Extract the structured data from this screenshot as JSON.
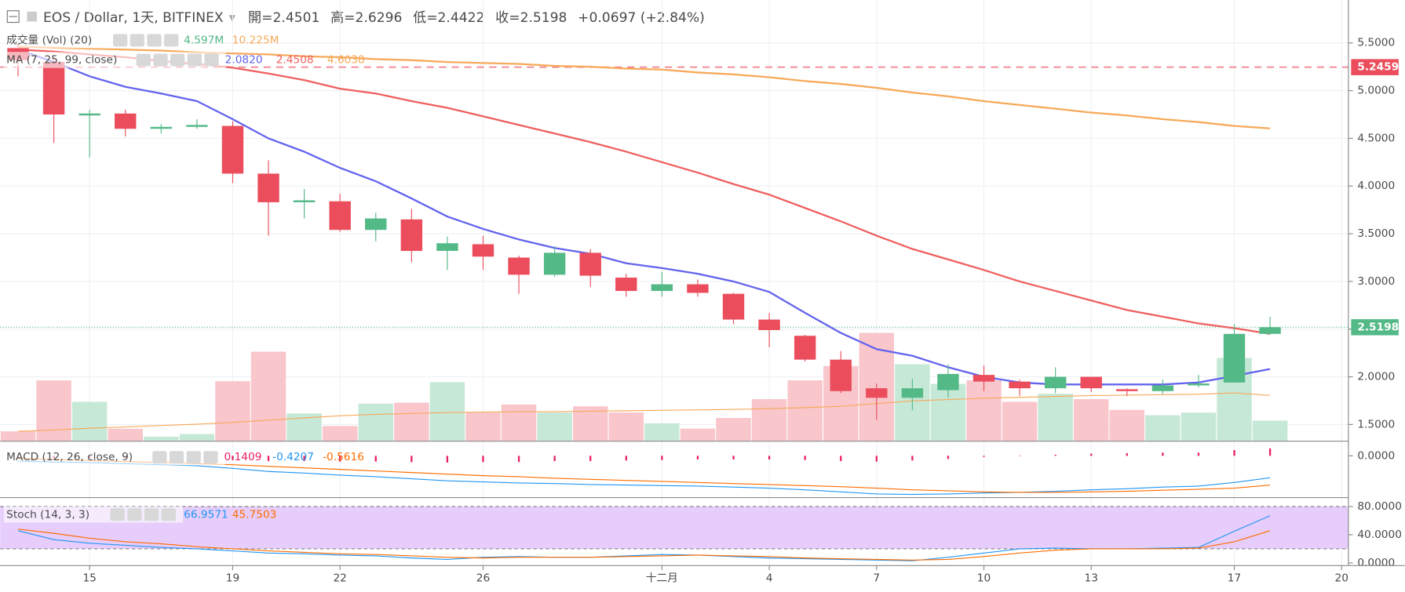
{
  "chart_data": {
    "type": "candlestick",
    "title": "EOS / Dollar, 1天, BITFINEX",
    "ohlc_labels": [
      "開=",
      "高=",
      "低=",
      "收="
    ],
    "change": "+0.0697 (+2.84%)",
    "categories": [
      null,
      null,
      "15",
      null,
      null,
      null,
      "19",
      null,
      null,
      "22",
      null,
      null,
      null,
      "26",
      null,
      null,
      null,
      null,
      "十二月",
      null,
      null,
      "4",
      null,
      null,
      "7",
      null,
      null,
      "10",
      null,
      null,
      "13",
      null,
      null,
      null,
      "17",
      null,
      null,
      "20"
    ],
    "open": [
      5.45,
      5.3,
      4.74,
      4.76,
      4.6,
      4.62,
      4.63,
      4.13,
      3.83,
      3.84,
      3.54,
      3.65,
      3.32,
      3.39,
      3.25,
      3.07,
      3.3,
      3.04,
      2.9,
      2.97,
      2.87,
      2.6,
      2.43,
      2.18,
      1.88,
      1.78,
      1.86,
      2.02,
      1.95,
      1.88,
      2.0,
      1.87,
      1.85,
      1.91,
      1.94,
      2.4501,
      null,
      null
    ],
    "high": [
      5.5,
      5.35,
      4.8,
      4.8,
      4.65,
      4.7,
      4.68,
      4.27,
      3.97,
      3.92,
      3.72,
      3.76,
      3.47,
      3.48,
      3.27,
      3.37,
      3.34,
      3.08,
      3.1,
      3.02,
      2.88,
      2.67,
      2.44,
      2.27,
      1.93,
      1.98,
      2.13,
      2.12,
      1.97,
      2.1,
      2.0,
      1.88,
      1.97,
      2.02,
      2.55,
      2.6296,
      null,
      null
    ],
    "low": [
      5.15,
      4.45,
      4.3,
      4.52,
      4.55,
      4.6,
      4.03,
      3.48,
      3.66,
      3.52,
      3.42,
      3.2,
      3.12,
      3.12,
      2.87,
      3.05,
      2.94,
      2.84,
      2.84,
      2.84,
      2.55,
      2.31,
      2.16,
      1.83,
      1.55,
      1.65,
      1.78,
      1.85,
      1.8,
      1.83,
      1.84,
      1.8,
      1.82,
      1.89,
      1.94,
      2.4422,
      null,
      null
    ],
    "close": [
      5.32,
      4.75,
      4.76,
      4.6,
      4.62,
      4.64,
      4.13,
      3.83,
      3.85,
      3.54,
      3.66,
      3.32,
      3.4,
      3.26,
      3.07,
      3.3,
      3.06,
      2.9,
      2.97,
      2.88,
      2.6,
      2.49,
      2.18,
      1.85,
      1.78,
      1.88,
      2.03,
      1.95,
      1.88,
      2.0,
      1.88,
      1.85,
      1.91,
      1.93,
      2.45,
      2.5198,
      null,
      null
    ],
    "up_color": "#53b987",
    "down_color": "#eb4d5c",
    "ylim": [
      1.325,
      5.95
    ],
    "yticks": [
      {
        "value": 1.5,
        "label": "1.5000"
      },
      {
        "value": 2,
        "label": "2.0000"
      },
      {
        "value": 2.5,
        "label": "2.5000"
      },
      {
        "value": 3,
        "label": "3.0000"
      },
      {
        "value": 3.5,
        "label": "3.5000"
      },
      {
        "value": 4,
        "label": "4.0000"
      },
      {
        "value": 4.5,
        "label": "4.5000"
      },
      {
        "value": 5,
        "label": "5.0000"
      },
      {
        "value": 5.5,
        "label": "5.5000"
      }
    ],
    "grid": true,
    "alert_line": {
      "value": 5.2459,
      "color": "#eb4d5c"
    },
    "volume": {
      "name": "成交量 (Vol) (20)",
      "ylim": [
        0,
        98.6
      ],
      "up_color": "#c6e8d7",
      "down_color": "#f8c6cb",
      "label_color": "#53b987",
      "values": [
        2.2,
        13.6,
        8.8,
        2.8,
        1.0,
        1.6,
        13.4,
        20,
        6.2,
        3.4,
        8.4,
        8.6,
        13.2,
        6.4,
        8.2,
        6.4,
        7.8,
        6.4,
        4.0,
        2.8,
        5.2,
        9.4,
        13.6,
        16.8,
        24.2,
        17.2,
        12.8,
        13.6,
        8.8,
        10.6,
        9.4,
        7,
        5.8,
        6.4,
        18.6,
        4.597,
        null,
        null
      ],
      "value_label": "4.597M",
      "ma": {
        "color": "#f7a95a",
        "value_label": "10.225M",
        "values": [
          2.2,
          2.5,
          2.9,
          3.2,
          3.5,
          3.8,
          4.2,
          4.7,
          5.2,
          5.7,
          6.0,
          6.2,
          6.4,
          6.5,
          6.6,
          6.6,
          6.7,
          6.8,
          6.9,
          7.0,
          7.1,
          7.3,
          7.5,
          7.8,
          8.4,
          9.0,
          9.3,
          9.6,
          9.8,
          10.0,
          10.2,
          10.3,
          10.4,
          10.5,
          10.8,
          10.225,
          null,
          null
        ]
      }
    },
    "ma": {
      "name": "MA (7, 25, 99, close)",
      "series": [
        {
          "color": "#6363ee",
          "legend_value": "2.0820",
          "values": [
            5.43,
            5.3,
            5.15,
            5.04,
            4.97,
            4.89,
            4.7,
            4.5,
            4.36,
            4.19,
            4.05,
            3.87,
            3.68,
            3.55,
            3.44,
            3.35,
            3.29,
            3.19,
            3.14,
            3.08,
            3.0,
            2.89,
            2.67,
            2.46,
            2.29,
            2.22,
            2.1,
            2.0,
            1.94,
            1.92,
            1.92,
            1.92,
            1.92,
            1.94,
            2.01,
            2.082,
            null,
            null
          ]
        },
        {
          "color": "#ef5f5f",
          "legend_value": "2.4508",
          "values": [
            5.43,
            5.41,
            5.38,
            5.35,
            5.31,
            5.28,
            5.24,
            5.18,
            5.11,
            5.02,
            4.97,
            4.89,
            4.82,
            4.73,
            4.64,
            4.55,
            4.46,
            4.36,
            4.25,
            4.14,
            4.02,
            3.91,
            3.77,
            3.63,
            3.48,
            3.34,
            3.23,
            3.12,
            3.0,
            2.9,
            2.8,
            2.7,
            2.63,
            2.56,
            2.51,
            2.4508,
            null,
            null
          ]
        },
        {
          "color": "#f7a95a",
          "legend_value": "4.6038",
          "values": [
            5.46,
            5.45,
            5.44,
            5.43,
            5.42,
            5.4,
            5.39,
            5.38,
            5.36,
            5.35,
            5.33,
            5.32,
            5.3,
            5.29,
            5.28,
            5.26,
            5.25,
            5.23,
            5.22,
            5.19,
            5.17,
            5.14,
            5.1,
            5.07,
            5.03,
            4.98,
            4.94,
            4.89,
            4.85,
            4.81,
            4.77,
            4.74,
            4.7,
            4.67,
            4.63,
            4.6038,
            null,
            null
          ]
        }
      ]
    },
    "macd": {
      "name": "MACD (12, 26, close, 9)",
      "ylim": [
        -0.8,
        0.28
      ],
      "yticks": [
        {
          "value": 0,
          "label": "0.0000"
        }
      ],
      "histogram": {
        "color": "#e91e63",
        "legend_value": "0.1409",
        "values": [
          -0.05,
          -0.05,
          -0.04,
          -0.04,
          -0.04,
          -0.04,
          -0.07,
          -0.1,
          -0.1,
          -0.11,
          -0.11,
          -0.12,
          -0.13,
          -0.12,
          -0.12,
          -0.1,
          -0.1,
          -0.09,
          -0.08,
          -0.07,
          -0.07,
          -0.07,
          -0.08,
          -0.1,
          -0.11,
          -0.09,
          -0.06,
          -0.02,
          0,
          0.02,
          0.04,
          0.05,
          0.06,
          0.06,
          0.11,
          0.1409,
          null,
          null
        ]
      },
      "series": [
        {
          "color": "#2196f3",
          "legend_value": "-0.4207",
          "values": [
            -0.1,
            -0.12,
            -0.13,
            -0.15,
            -0.17,
            -0.19,
            -0.24,
            -0.3,
            -0.33,
            -0.37,
            -0.4,
            -0.44,
            -0.48,
            -0.5,
            -0.52,
            -0.53,
            -0.55,
            -0.56,
            -0.57,
            -0.58,
            -0.6,
            -0.62,
            -0.65,
            -0.69,
            -0.73,
            -0.74,
            -0.73,
            -0.71,
            -0.7,
            -0.68,
            -0.65,
            -0.63,
            -0.6,
            -0.58,
            -0.51,
            -0.4207,
            null,
            null
          ]
        },
        {
          "color": "#ff6d00",
          "legend_value": "-0.5616",
          "values": [
            -0.05,
            -0.07,
            -0.09,
            -0.11,
            -0.13,
            -0.15,
            -0.17,
            -0.2,
            -0.23,
            -0.26,
            -0.29,
            -0.32,
            -0.35,
            -0.38,
            -0.4,
            -0.43,
            -0.45,
            -0.47,
            -0.49,
            -0.51,
            -0.53,
            -0.55,
            -0.57,
            -0.59,
            -0.62,
            -0.65,
            -0.67,
            -0.69,
            -0.7,
            -0.7,
            -0.69,
            -0.68,
            -0.66,
            -0.64,
            -0.62,
            -0.5616,
            null,
            null
          ]
        }
      ]
    },
    "stoch": {
      "name": "Stoch (14, 3, 3)",
      "ylim": [
        -3.8,
        92.7
      ],
      "band": [
        20,
        80
      ],
      "band_color": "#e6cdfb",
      "yticks": [
        {
          "value": 0,
          "label": "0.0000"
        },
        {
          "value": 40,
          "label": "40.0000"
        },
        {
          "value": 80,
          "label": "80.0000"
        }
      ],
      "series": [
        {
          "color": "#2196f3",
          "legend_value": "66.9571",
          "values": [
            45.7,
            33,
            28,
            25,
            22,
            20,
            17,
            14,
            13,
            11,
            10,
            7,
            5,
            8,
            9,
            8,
            8,
            10,
            12,
            11,
            9,
            7,
            6,
            5,
            4,
            3,
            8,
            14,
            20,
            21,
            20,
            20,
            21,
            22,
            45,
            66.9571,
            null,
            null
          ]
        },
        {
          "color": "#ff6d00",
          "legend_value": "45.7503",
          "values": [
            48,
            42,
            35,
            30,
            27,
            23,
            20,
            17,
            15,
            13,
            12,
            10,
            8,
            7,
            8,
            8,
            8,
            9,
            10,
            11,
            10,
            9,
            7,
            6,
            5,
            4,
            5,
            9,
            14,
            18,
            20,
            20,
            20,
            21,
            30,
            45.7503,
            null,
            null
          ]
        }
      ]
    }
  }
}
